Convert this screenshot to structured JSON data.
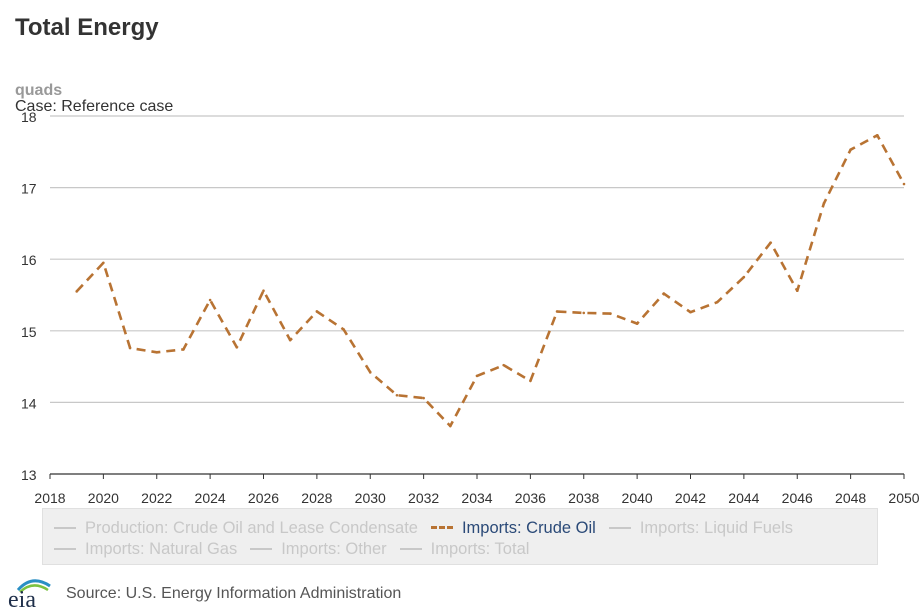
{
  "page": {
    "title": "Total Energy",
    "unit": "quads",
    "case": "Case: Reference case",
    "source": "Source: U.S. Energy Information Administration",
    "logo_text": "eia"
  },
  "legend": {
    "rows": [
      [
        {
          "label": "Production: Crude Oil and Lease Condensate",
          "active": false
        },
        {
          "label": "Imports: Crude Oil",
          "active": true
        },
        {
          "label": "Imports: Liquid Fuels",
          "active": false
        }
      ],
      [
        {
          "label": "Imports: Natural Gas",
          "active": false
        },
        {
          "label": "Imports: Other",
          "active": false
        },
        {
          "label": "Imports: Total",
          "active": false
        }
      ]
    ]
  },
  "chart_data": {
    "type": "line",
    "title": "Total Energy",
    "ylabel": "quads",
    "xlim": [
      2018,
      2050
    ],
    "ylim": [
      13,
      18
    ],
    "x_ticks": [
      2018,
      2020,
      2022,
      2024,
      2026,
      2028,
      2030,
      2032,
      2034,
      2036,
      2038,
      2040,
      2042,
      2044,
      2046,
      2048,
      2050
    ],
    "y_ticks": [
      13,
      14,
      15,
      16,
      17,
      18
    ],
    "grid": true,
    "legend_position": "bottom",
    "series": [
      {
        "name": "Imports: Crude Oil",
        "color": "#b87333",
        "dash": true,
        "x": [
          2019,
          2020,
          2021,
          2022,
          2023,
          2024,
          2025,
          2026,
          2027,
          2028,
          2029,
          2030,
          2031,
          2032,
          2033,
          2034,
          2035,
          2036,
          2037,
          2038,
          2039,
          2040,
          2041,
          2042,
          2043,
          2044,
          2045,
          2046,
          2047,
          2048,
          2049,
          2050
        ],
        "values": [
          15.55,
          15.95,
          14.76,
          14.7,
          14.74,
          15.43,
          14.77,
          15.56,
          14.87,
          15.27,
          15.02,
          14.42,
          14.1,
          14.06,
          13.67,
          14.37,
          14.52,
          14.3,
          15.27,
          15.25,
          15.24,
          15.1,
          15.52,
          15.26,
          15.4,
          15.75,
          16.23,
          15.56,
          16.78,
          17.53,
          17.73,
          17.05
        ]
      }
    ]
  }
}
